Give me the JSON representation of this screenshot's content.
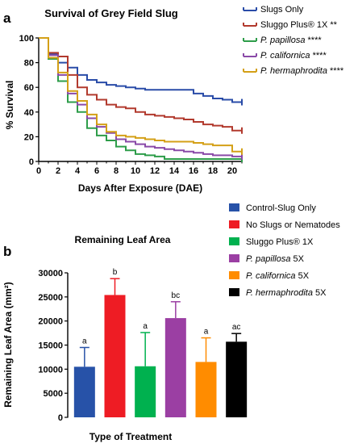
{
  "colors": {
    "slugs_only": "#2a4ca8",
    "sluggo": "#b23a2e",
    "papillosa": "#2e9d4a",
    "californica": "#8a4aa8",
    "hermaphrodita": "#d4a017",
    "bar_control": "#2752a8",
    "bar_noslug": "#ee1c24",
    "bar_sluggo": "#00b14f",
    "bar_papillosa": "#9b3fa3",
    "bar_californica": "#ff8c00",
    "bar_hermaphrodita": "#000000"
  },
  "chart_data": [
    {
      "type": "line",
      "panel_label": "a",
      "title": "Survival of Grey Field Slug",
      "xlabel": "Days After Exposure (DAE)",
      "ylabel": "% Survival",
      "xlim": [
        0,
        21
      ],
      "ylim": [
        0,
        100
      ],
      "xticks": [
        "0",
        "2",
        "4",
        "6",
        "8",
        "10",
        "12",
        "14",
        "16",
        "18",
        "20"
      ],
      "yticks": [
        "0",
        "20",
        "40",
        "60",
        "80",
        "100"
      ],
      "legend_position": "right",
      "series": [
        {
          "key": "slugs_only",
          "name": "Slugs Only",
          "name_suffix": "",
          "italic": false,
          "x": [
            0,
            1,
            2,
            3,
            4,
            5,
            6,
            7,
            8,
            9,
            10,
            11,
            12,
            13,
            14,
            15,
            16,
            17,
            18,
            19,
            20,
            21
          ],
          "y": [
            100,
            87,
            80,
            76,
            70,
            66,
            64,
            62,
            61,
            60,
            59,
            58,
            58,
            58,
            58,
            58,
            55,
            53,
            51,
            50,
            48,
            48
          ]
        },
        {
          "key": "sluggo",
          "name": "Sluggo Plus® 1X",
          "name_suffix": " **",
          "italic": false,
          "x": [
            0,
            1,
            2,
            3,
            4,
            5,
            6,
            7,
            8,
            9,
            10,
            11,
            12,
            13,
            14,
            15,
            16,
            17,
            18,
            19,
            20,
            21
          ],
          "y": [
            100,
            88,
            85,
            70,
            60,
            54,
            50,
            46,
            44,
            43,
            40,
            38,
            37,
            36,
            35,
            34,
            32,
            30,
            29,
            28,
            25,
            25
          ]
        },
        {
          "key": "papillosa",
          "name": "P. papillosa",
          "name_suffix": " ****",
          "italic": true,
          "x": [
            0,
            1,
            2,
            3,
            4,
            5,
            6,
            7,
            8,
            9,
            10,
            11,
            12,
            13,
            14,
            15,
            16,
            17,
            18,
            19,
            20,
            21
          ],
          "y": [
            100,
            83,
            65,
            48,
            40,
            27,
            21,
            17,
            12,
            9,
            6,
            5,
            4,
            2,
            2,
            2,
            2,
            2,
            2,
            2,
            2,
            2
          ]
        },
        {
          "key": "californica",
          "name": "P. californica",
          "name_suffix": " ****",
          "italic": true,
          "x": [
            0,
            1,
            2,
            3,
            4,
            5,
            6,
            7,
            8,
            9,
            10,
            11,
            12,
            13,
            14,
            15,
            16,
            17,
            18,
            19,
            20,
            21
          ],
          "y": [
            100,
            86,
            70,
            55,
            46,
            35,
            28,
            23,
            18,
            16,
            14,
            12,
            11,
            10,
            9,
            8,
            7,
            6,
            5,
            5,
            4,
            4
          ]
        },
        {
          "key": "hermaphrodita",
          "name": "P. hermaphrodita",
          "name_suffix": " ****",
          "italic": true,
          "x": [
            0,
            1,
            2,
            3,
            4,
            5,
            6,
            7,
            8,
            9,
            10,
            11,
            12,
            13,
            14,
            15,
            16,
            17,
            18,
            19,
            20,
            21
          ],
          "y": [
            100,
            84,
            72,
            57,
            49,
            38,
            30,
            24,
            21,
            20,
            19,
            18,
            17,
            16,
            16,
            16,
            15,
            14,
            13,
            13,
            8,
            8
          ]
        }
      ]
    },
    {
      "type": "bar",
      "panel_label": "b",
      "title": "Remaining Leaf Area",
      "xlabel": "Type of Treatment",
      "ylabel": "Remaining Leaf Area (mm²)",
      "ylim": [
        0,
        30000
      ],
      "yticks": [
        "0",
        "5000",
        "10000",
        "15000",
        "20000",
        "25000",
        "30000"
      ],
      "legend_position": "right",
      "categories": [
        {
          "key": "bar_control",
          "name": "Control-Slug Only",
          "suffix": "",
          "italic": false
        },
        {
          "key": "bar_noslug",
          "name": "No Slugs or Nematodes",
          "suffix": "",
          "italic": false
        },
        {
          "key": "bar_sluggo",
          "name": "Sluggo Plus® 1X",
          "suffix": "",
          "italic": false
        },
        {
          "key": "bar_papillosa",
          "name": "P. papillosa",
          "suffix": " 5X",
          "italic": true
        },
        {
          "key": "bar_californica",
          "name": "P. californica",
          "suffix": " 5X",
          "italic": true
        },
        {
          "key": "bar_hermaphrodita",
          "name": "P. hermaphrodita",
          "suffix": " 5X",
          "italic": true
        }
      ],
      "values": [
        10500,
        25400,
        10600,
        20600,
        11500,
        15700
      ],
      "errors": [
        4000,
        3400,
        7000,
        3400,
        5000,
        1700
      ],
      "letters": [
        "a",
        "b",
        "a",
        "bc",
        "a",
        "ac"
      ]
    }
  ]
}
